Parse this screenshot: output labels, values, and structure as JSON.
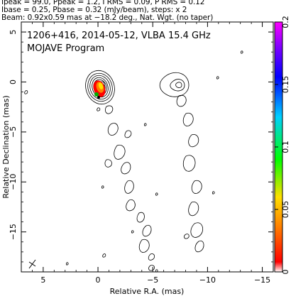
{
  "header": {
    "line1": "Ipeak = 99.0, Ppeak = 1.2, I RMS = 0.09, P RMS = 0.12",
    "line2": "Ibase = 0.25, Pbase = 0.32 (mJy/beam), steps: x 2",
    "line3": "Beam: 0.92x0.59 mas at −18.2 deg., Nat. Wgt. (no taper)"
  },
  "plot_title": {
    "line1": "1206+416, 2014-05-12, VLBA 15.4 GHz",
    "line2": "MOJAVE Program"
  },
  "chart_data": {
    "type": "heatmap",
    "xlabel": "Relative R.A. (mas)",
    "ylabel": "Relative Declination (mas)",
    "xlim": [
      7,
      -16
    ],
    "ylim": [
      -19,
      6
    ],
    "xticks": [
      5,
      0,
      -5,
      -10,
      -15
    ],
    "yticks": [
      5,
      0,
      -5,
      -10,
      -15
    ],
    "colorbar": {
      "range": [
        0,
        0.2
      ],
      "ticks": [
        0,
        0.05,
        0.1,
        0.15,
        0.2
      ],
      "colors": [
        "#ffffff",
        "#ff0000",
        "#ff7f00",
        "#ffe000",
        "#00ff00",
        "#00d0ff",
        "#0000ff",
        "#8000ff",
        "#ff00ff"
      ]
    },
    "core": {
      "x": 0,
      "y": 0
    },
    "beam": {
      "major_mas": 0.92,
      "minor_mas": 0.59,
      "pa_deg": -18.2
    }
  }
}
